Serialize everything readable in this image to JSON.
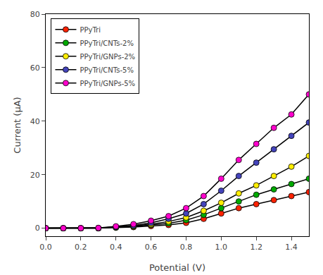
{
  "chart_data": {
    "type": "line",
    "x_label": "Potential (V)",
    "y_label": "Current (μA)",
    "x": [
      0.0,
      0.1,
      0.2,
      0.3,
      0.4,
      0.5,
      0.6,
      0.7,
      0.8,
      0.9,
      1.0,
      1.1,
      1.2,
      1.3,
      1.4,
      1.5
    ],
    "series": [
      {
        "name": "PPyTri",
        "color": "#ff2200",
        "values": [
          0.0,
          0.0,
          0.0,
          0.0,
          0.2,
          0.4,
          0.8,
          1.2,
          2.0,
          3.5,
          5.5,
          7.5,
          9.0,
          10.5,
          12.0,
          13.5
        ]
      },
      {
        "name": "PPyTri/CNTs-2%",
        "color": "#00aa00",
        "values": [
          0.0,
          0.0,
          0.0,
          0.0,
          0.3,
          0.6,
          1.2,
          1.8,
          3.0,
          5.0,
          7.5,
          10.0,
          12.5,
          14.5,
          16.5,
          18.5
        ]
      },
      {
        "name": "PPyTri/GNPs-2%",
        "color": "#ffee00",
        "values": [
          0.0,
          0.0,
          0.0,
          0.0,
          0.4,
          0.8,
          1.5,
          2.5,
          4.0,
          6.5,
          9.5,
          13.0,
          16.0,
          19.5,
          23.0,
          27.0
        ]
      },
      {
        "name": "PPyTri/CNTs-5%",
        "color": "#4444bb",
        "values": [
          0.0,
          0.0,
          0.0,
          0.0,
          0.5,
          1.0,
          2.0,
          3.5,
          5.5,
          9.0,
          14.0,
          19.5,
          24.5,
          29.5,
          34.5,
          39.5
        ]
      },
      {
        "name": "PPyTri/GNPs-5%",
        "color": "#ff00cc",
        "values": [
          0.0,
          0.0,
          0.0,
          0.1,
          0.7,
          1.5,
          2.8,
          4.5,
          7.5,
          12.0,
          18.5,
          25.5,
          31.5,
          37.5,
          42.5,
          50.0
        ]
      }
    ],
    "xlim": [
      0.0,
      1.5
    ],
    "ylim": [
      -3,
      80
    ],
    "xticks": [
      {
        "value": 0.0,
        "label": "0.0"
      },
      0.2,
      0.4,
      0.6,
      0.8,
      {
        "value": 1.0,
        "label": "1.0"
      },
      1.2,
      1.4
    ],
    "yticks": [
      0,
      20,
      40,
      60,
      80
    ],
    "marker": "circle",
    "line_style": "solid",
    "legend": "upper left",
    "grid": false
  }
}
